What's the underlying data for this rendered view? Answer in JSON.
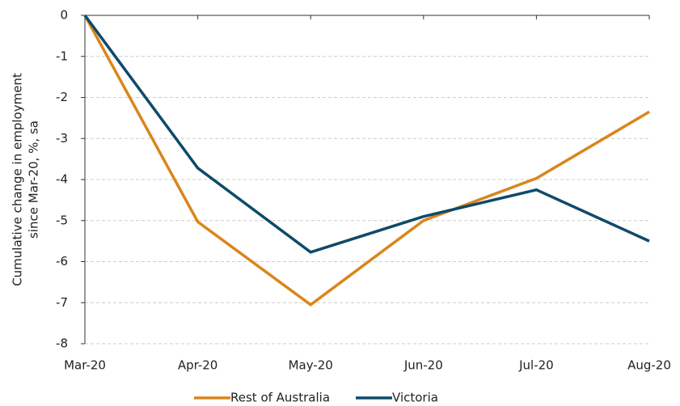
{
  "chart_data": {
    "type": "line",
    "ylabel": [
      "Cumulative change in employment",
      "since Mar-20, %, sa"
    ],
    "categories": [
      "Mar-20",
      "Apr-20",
      "May-20",
      "Jun-20",
      "Jul-20",
      "Aug-20"
    ],
    "series": [
      {
        "name": "Rest of Australia",
        "color": "#d9861c",
        "values": [
          0,
          -5.03,
          -7.05,
          -5.0,
          -3.97,
          -2.35
        ]
      },
      {
        "name": "Victoria",
        "color": "#0f4a6a",
        "values": [
          0,
          -3.72,
          -5.77,
          -4.9,
          -4.25,
          -5.5
        ]
      }
    ],
    "ylim": [
      -8,
      0
    ],
    "yticks": [
      0,
      -1,
      -2,
      -3,
      -4,
      -5,
      -6,
      -7,
      -8
    ],
    "grid": true,
    "legend": "bottom"
  }
}
